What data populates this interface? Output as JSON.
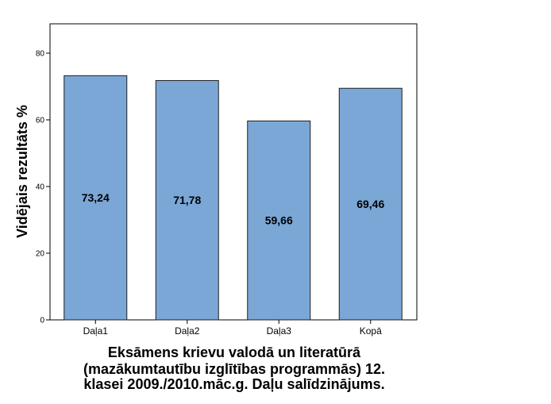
{
  "chart_data": {
    "type": "bar",
    "categories": [
      "Daļa1",
      "Daļa2",
      "Daļa3",
      "Kopā"
    ],
    "values": [
      73.24,
      71.78,
      59.66,
      69.46
    ],
    "data_labels": [
      "73,24",
      "71,78",
      "59,66",
      "69,46"
    ],
    "title_lines": [
      "Eksāmens krievu valodā un literatūrā",
      "(mazākumtautību izglītības programmās) 12.",
      "klasei 2009./2010.māc.g. Daļu salīdzinājums."
    ],
    "xlabel": "",
    "ylabel": "Vidējais rezultāts %",
    "ylim": [
      0,
      88.8
    ],
    "yticks": [
      0,
      20,
      40,
      60,
      80
    ],
    "grid": false,
    "bar_color": "#7BA7D6",
    "bar_edge_color": "#1F1F1F"
  }
}
